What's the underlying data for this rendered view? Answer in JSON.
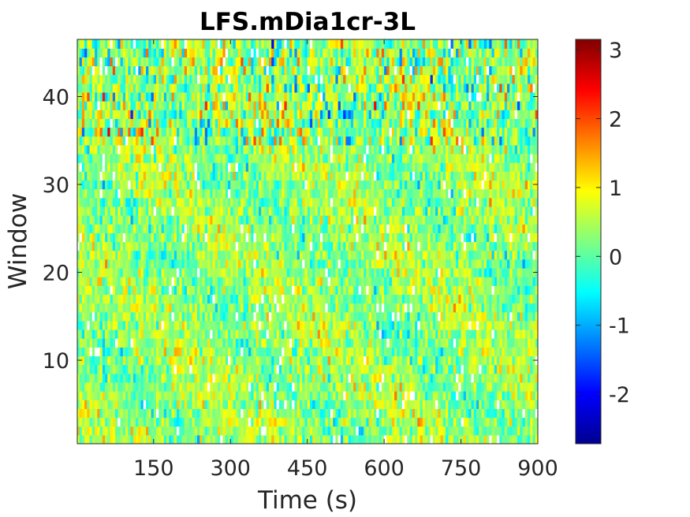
{
  "chart_data": {
    "type": "heatmap",
    "title": "LFS.mDia1cr-3L",
    "xlabel": "Time (s)",
    "ylabel": "Window",
    "xlim": [
      1,
      900
    ],
    "ylim": [
      0.5,
      46.5
    ],
    "x_ticks": [
      150,
      300,
      450,
      600,
      750,
      900
    ],
    "x_tick_labels": [
      "150",
      "300",
      "450",
      "600",
      "750",
      "900"
    ],
    "y_ticks": [
      10,
      20,
      30,
      40
    ],
    "y_tick_labels": [
      "10",
      "20",
      "30",
      "40"
    ],
    "rows": 46,
    "time_points": 180,
    "time_step_s": 5,
    "colormap": "jet",
    "missing_color": "#ffffff",
    "colorbar": {
      "range": [
        -2.72,
        3.15
      ],
      "ticks": [
        -2,
        -1,
        0,
        1,
        2,
        3
      ],
      "tick_labels": [
        "-2",
        "-1",
        "0",
        "1",
        "2",
        "3"
      ]
    },
    "grid": false,
    "legend": "none"
  }
}
